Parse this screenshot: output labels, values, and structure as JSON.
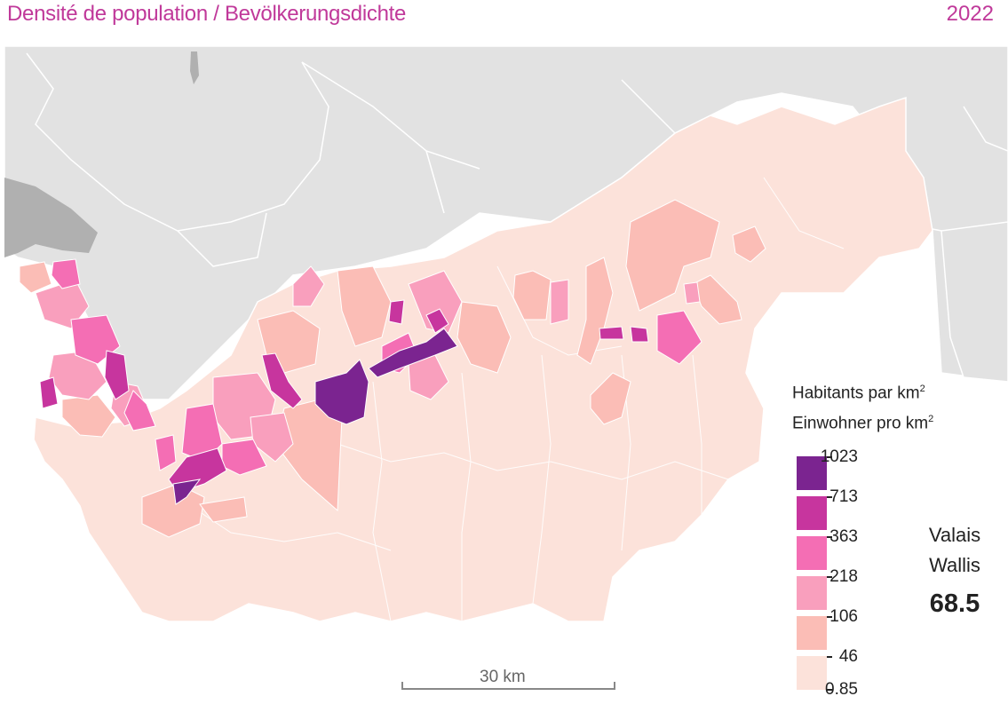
{
  "header": {
    "title": "Densité de population / Bevölkerungsdichte",
    "year": "2022"
  },
  "legend": {
    "title_fr": "Habitants par km",
    "title_de": "Einwohner pro km",
    "superscript": "2",
    "classes": [
      {
        "label": "1023",
        "color": "#7b2490"
      },
      {
        "label": "713",
        "color": "#c7359e"
      },
      {
        "label": "363",
        "color": "#f46eb4"
      },
      {
        "label": "218",
        "color": "#f99fbd"
      },
      {
        "label": "106",
        "color": "#fbbdb6"
      },
      {
        "label": "46",
        "color": "#fce2da"
      }
    ],
    "min_label": "0.85"
  },
  "summary": {
    "region_fr": "Valais",
    "region_de": "Wallis",
    "value": "68.5"
  },
  "scale_bar": {
    "label": "30 km"
  },
  "colors": {
    "title": "#c0399a",
    "background_land": "#e2e2e2",
    "lake": "#b0b0b0",
    "borders": "#ffffff"
  }
}
